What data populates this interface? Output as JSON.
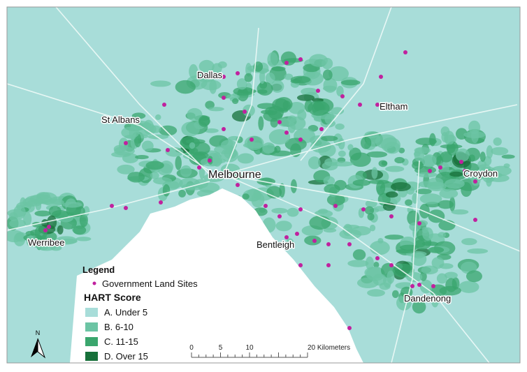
{
  "map": {
    "places": [
      "Dallas",
      "Eltham",
      "St Albans",
      "Melbourne",
      "Croydon",
      "Werribee",
      "Bentleigh",
      "Dandenong"
    ],
    "legend": {
      "title": "Legend",
      "sites": {
        "label": "Government Land Sites",
        "color": "#c0219e"
      },
      "score_title": "HART Score",
      "classes": [
        {
          "label": "A. Under 5",
          "color": "#a8ddd9"
        },
        {
          "label": "B. 6-10",
          "color": "#6cc4a4"
        },
        {
          "label": "C. 11-15",
          "color": "#3aa66d"
        },
        {
          "label": "D. Over 15",
          "color": "#17703a"
        }
      ]
    },
    "scale": [
      "0",
      "5",
      "10",
      "20 Kilometers"
    ],
    "north": "N"
  }
}
